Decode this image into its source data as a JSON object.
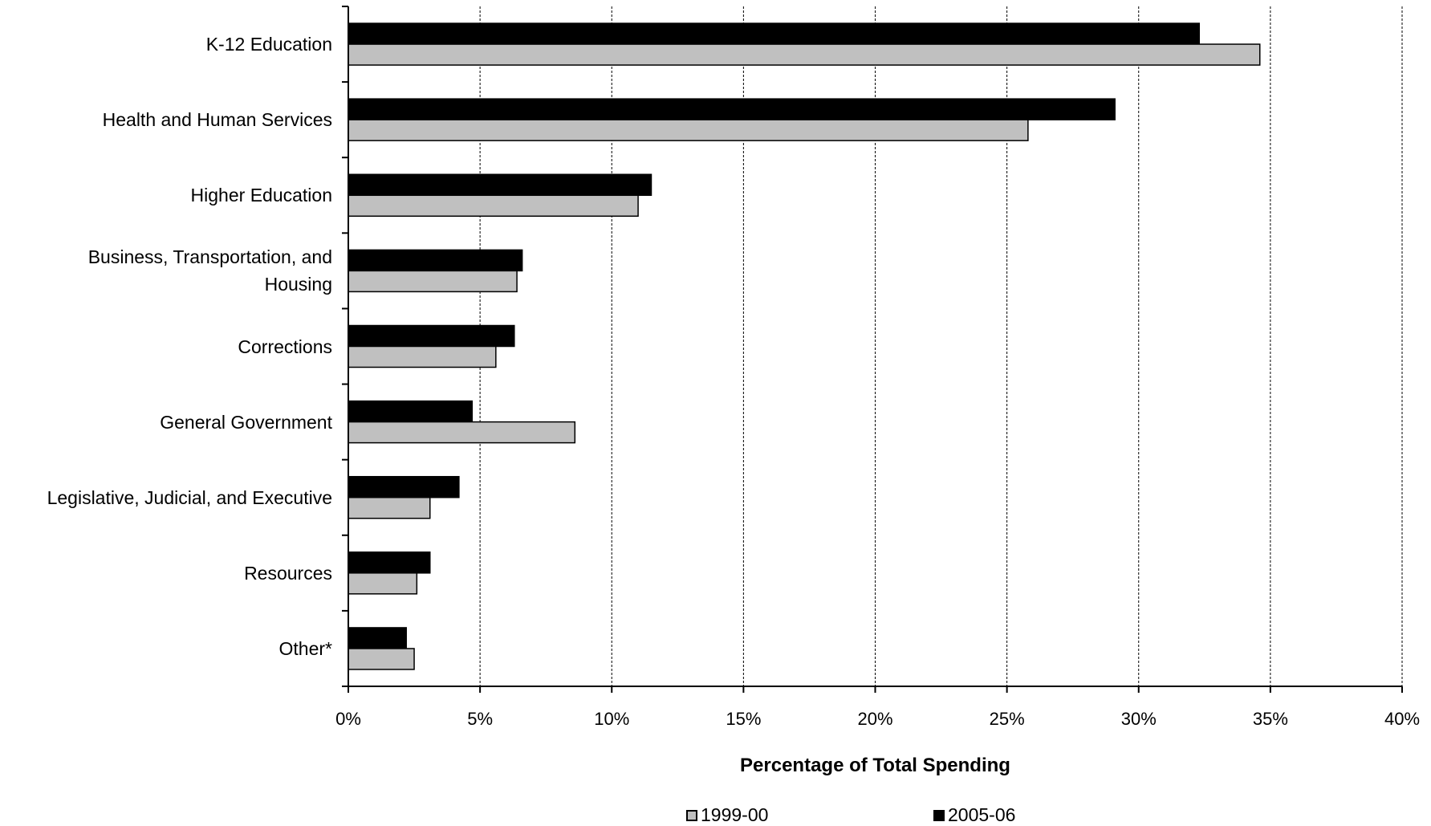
{
  "chart_data": {
    "type": "bar",
    "orientation": "horizontal",
    "categories": [
      "K-12 Education",
      "Health and Human Services",
      "Higher Education",
      "Business, Transportation, and\nHousing",
      "Corrections",
      "General Government",
      "Legislative, Judicial, and Executive",
      "Resources",
      "Other*"
    ],
    "series": [
      {
        "name": "2005-06",
        "color": "#000000",
        "values": [
          32.3,
          29.1,
          11.5,
          6.6,
          6.3,
          4.7,
          4.2,
          3.1,
          2.2
        ]
      },
      {
        "name": "1999-00",
        "color": "#c0c0c0",
        "values": [
          34.6,
          25.8,
          11.0,
          6.4,
          5.6,
          8.6,
          3.1,
          2.6,
          2.5
        ]
      }
    ],
    "xlabel": "Percentage of Total Spending",
    "xlim": [
      0,
      40
    ],
    "xticks": [
      "0%",
      "5%",
      "10%",
      "15%",
      "20%",
      "25%",
      "30%",
      "35%",
      "40%"
    ],
    "grid": "vertical dashed",
    "legend_placement": "bottom",
    "legend": [
      {
        "label": "1999-00",
        "color": "#c0c0c0"
      },
      {
        "label": "2005-06",
        "color": "#000000"
      }
    ]
  }
}
